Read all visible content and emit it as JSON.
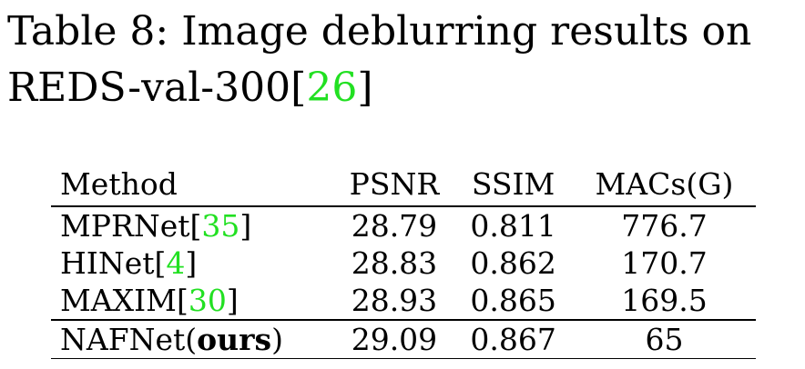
{
  "caption": {
    "text": "Table 8: Image deblurring results on",
    "text2": "REDS-val-300",
    "cite_open": "[",
    "cite_num": "26",
    "cite_close": "]"
  },
  "table": {
    "headers": [
      "Method",
      "PSNR",
      "SSIM",
      "MACs(G)"
    ],
    "rows": [
      {
        "method": "MPRNet",
        "cite": "35",
        "psnr": "28.79",
        "ssim": "0.811",
        "macs": "776.7"
      },
      {
        "method": "HINet",
        "cite": "4",
        "psnr": "28.83",
        "ssim": "0.862",
        "macs": "170.7"
      },
      {
        "method": "MAXIM",
        "cite": "30",
        "psnr": "28.93",
        "ssim": "0.865",
        "macs": "169.5"
      }
    ],
    "final": {
      "method": "NAFNet(",
      "bold": "ours",
      "close": ")",
      "psnr": "29.09",
      "ssim": "0.867",
      "macs": "65"
    }
  },
  "colors": {
    "citation": "#22e022"
  }
}
